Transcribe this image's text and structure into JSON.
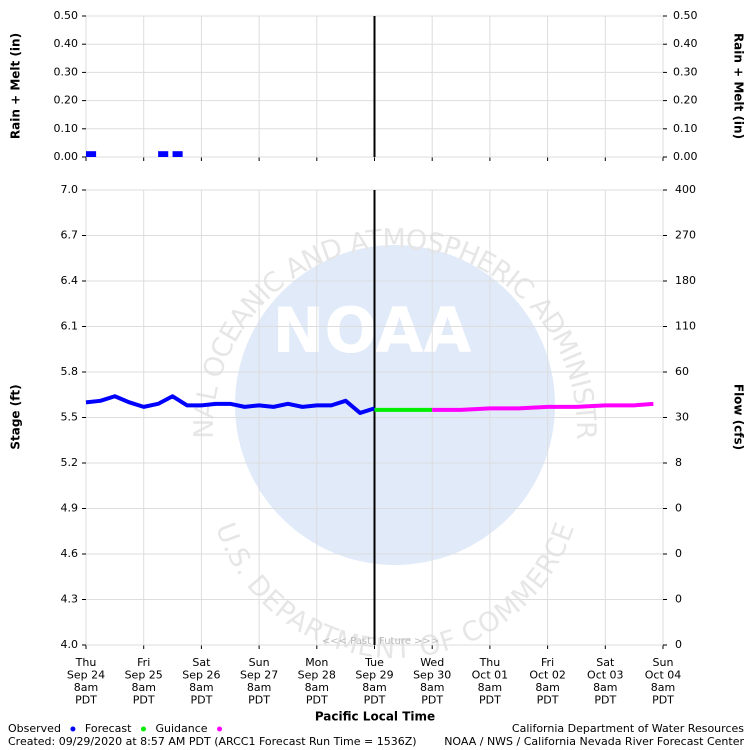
{
  "chart_data": {
    "type": "hydrograph",
    "x_title": "Pacific Local Time",
    "xlim": [
      "2020-09-24T08:00",
      "2020-10-04T08:00"
    ],
    "xticks": [
      {
        "value": "2020-09-24T08:00",
        "label": [
          "Thu",
          "Sep 24",
          "8am",
          "PDT"
        ]
      },
      {
        "value": "2020-09-25T08:00",
        "label": [
          "Fri",
          "Sep 25",
          "8am",
          "PDT"
        ]
      },
      {
        "value": "2020-09-26T08:00",
        "label": [
          "Sat",
          "Sep 26",
          "8am",
          "PDT"
        ]
      },
      {
        "value": "2020-09-27T08:00",
        "label": [
          "Sun",
          "Sep 27",
          "8am",
          "PDT"
        ]
      },
      {
        "value": "2020-09-28T08:00",
        "label": [
          "Mon",
          "Sep 28",
          "8am",
          "PDT"
        ]
      },
      {
        "value": "2020-09-29T08:00",
        "label": [
          "Tue",
          "Sep 29",
          "8am",
          "PDT"
        ]
      },
      {
        "value": "2020-09-30T08:00",
        "label": [
          "Wed",
          "Sep 30",
          "8am",
          "PDT"
        ]
      },
      {
        "value": "2020-10-01T08:00",
        "label": [
          "Thu",
          "Oct 01",
          "8am",
          "PDT"
        ]
      },
      {
        "value": "2020-10-02T08:00",
        "label": [
          "Fri",
          "Oct 02",
          "8am",
          "PDT"
        ]
      },
      {
        "value": "2020-10-03T08:00",
        "label": [
          "Sat",
          "Oct 03",
          "8am",
          "PDT"
        ]
      },
      {
        "value": "2020-10-04T08:00",
        "label": [
          "Sun",
          "Oct 04",
          "8am",
          "PDT"
        ]
      }
    ],
    "now": "2020-09-29T08:00",
    "past_label": "<<< Past",
    "future_label": "Future >>>",
    "precip": {
      "y_title": "Rain + Melt (in)",
      "ylim": [
        0,
        0.5
      ],
      "yticks": [
        {
          "value": 0,
          "label": "0.00"
        },
        {
          "value": 0.1,
          "label": "0.10"
        },
        {
          "value": 0.2,
          "label": "0.20"
        },
        {
          "value": 0.3,
          "label": "0.30"
        },
        {
          "value": 0.4,
          "label": "0.40"
        },
        {
          "value": 0.5,
          "label": "0.50"
        }
      ],
      "color": "#0000ff",
      "x": [
        "2020-09-24T08:00",
        "2020-09-25T14:00",
        "2020-09-25T20:00"
      ],
      "values": [
        0.01,
        0.01,
        0.01
      ]
    },
    "stage": {
      "y_title": "Stage (ft)",
      "y2_title": "Flow (cfs)",
      "ylim": [
        4.0,
        7.0
      ],
      "yticks": [
        {
          "value": 4,
          "label": "4.0"
        },
        4.3,
        4.6,
        4.9,
        5.2,
        5.5,
        5.8,
        6.1,
        6.4,
        6.7,
        {
          "value": 7,
          "label": "7.0"
        }
      ],
      "flow_ticks": [
        0,
        0,
        0,
        0,
        8,
        30,
        60,
        110,
        180,
        270,
        400
      ],
      "grid": true,
      "series": [
        {
          "name": "Observed",
          "color": "#0000ff",
          "x": [
            "2020-09-24T08:00",
            "2020-09-24T14:00",
            "2020-09-24T20:00",
            "2020-09-25T02:00",
            "2020-09-25T08:00",
            "2020-09-25T14:00",
            "2020-09-25T20:00",
            "2020-09-26T02:00",
            "2020-09-26T08:00",
            "2020-09-26T14:00",
            "2020-09-26T20:00",
            "2020-09-27T02:00",
            "2020-09-27T08:00",
            "2020-09-27T14:00",
            "2020-09-27T20:00",
            "2020-09-28T02:00",
            "2020-09-28T08:00",
            "2020-09-28T14:00",
            "2020-09-28T20:00",
            "2020-09-29T02:00",
            "2020-09-29T08:00"
          ],
          "values": [
            5.6,
            5.61,
            5.64,
            5.6,
            5.57,
            5.59,
            5.64,
            5.58,
            5.58,
            5.59,
            5.59,
            5.57,
            5.58,
            5.57,
            5.59,
            5.57,
            5.58,
            5.58,
            5.61,
            5.53,
            5.56
          ]
        },
        {
          "name": "Forecast",
          "color": "#00ee00",
          "x": [
            "2020-09-29T08:00",
            "2020-09-30T08:00"
          ],
          "values": [
            5.55,
            5.55
          ]
        },
        {
          "name": "Guidance",
          "color": "#ff00ff",
          "x": [
            "2020-09-30T08:00",
            "2020-09-30T20:00",
            "2020-10-01T08:00",
            "2020-10-01T20:00",
            "2020-10-02T08:00",
            "2020-10-02T20:00",
            "2020-10-03T08:00",
            "2020-10-03T20:00",
            "2020-10-04T04:00"
          ],
          "values": [
            5.55,
            5.55,
            5.56,
            5.56,
            5.57,
            5.57,
            5.58,
            5.58,
            5.59
          ]
        }
      ]
    },
    "watermark": {
      "logo": "NOAA",
      "ring_top": "NATIONAL OCEANIC AND ATMOSPHERIC ADMINISTRATION",
      "ring_bottom": "U.S. DEPARTMENT OF COMMERCE"
    },
    "footer": {
      "created": "Created: 09/29/2020 at 8:57 AM PDT  (ARCC1 Forecast Run Time = 1536Z)",
      "agency": "California Department of Water Resources",
      "center": "NOAA / NWS / California Nevada River Forecast Center"
    }
  }
}
